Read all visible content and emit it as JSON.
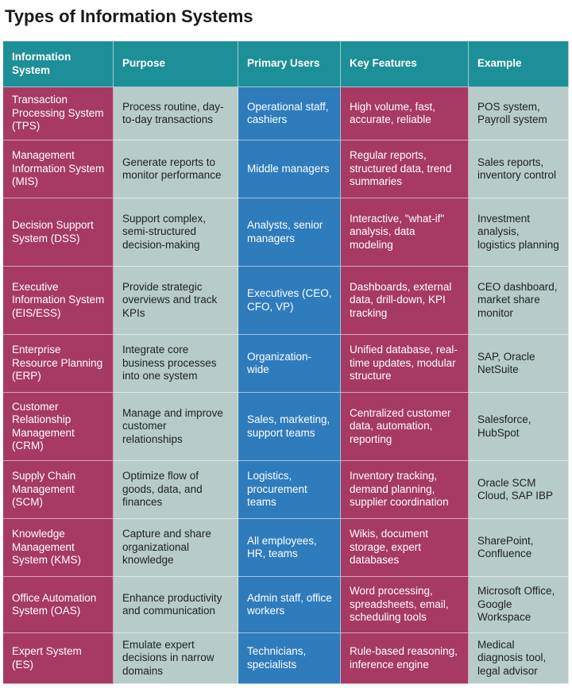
{
  "title": "Types of Information Systems",
  "headers": [
    "Information System",
    "Purpose",
    "Primary Users",
    "Key Features",
    "Example"
  ],
  "rows": [
    [
      "Transaction Processing System (TPS)",
      "Process routine, day-to-day transactions",
      "Operational staff, cashiers",
      "High volume, fast, accurate, reliable",
      "POS system, Payroll system"
    ],
    [
      "Management Information System (MIS)",
      "Generate reports to monitor performance",
      "Middle managers",
      "Regular reports, structured data, trend summaries",
      "Sales reports, inventory control"
    ],
    [
      "Decision Support System (DSS)",
      "Support complex, semi-structured decision-making",
      "Analysts, senior managers",
      "Interactive, \"what-if\" analysis, data modeling",
      "Investment analysis, logistics planning"
    ],
    [
      "Executive Information System (EIS/ESS)",
      "Provide strategic overviews and track KPIs",
      "Executives (CEO, CFO, VP)",
      "Dashboards, external data, drill-down, KPI tracking",
      "CEO dashboard, market share monitor"
    ],
    [
      "Enterprise Resource Planning (ERP)",
      "Integrate core business processes into one system",
      "Organization-wide",
      "Unified database, real-time updates, modular structure",
      "SAP, Oracle NetSuite"
    ],
    [
      "Customer Relationship Management (CRM)",
      "Manage and improve customer relationships",
      "Sales, marketing, support teams",
      "Centralized customer data, automation, reporting",
      "Salesforce, HubSpot"
    ],
    [
      "Supply Chain Management (SCM)",
      "Optimize flow of goods, data, and finances",
      "Logistics, procurement teams",
      "Inventory tracking, demand planning, supplier coordination",
      "Oracle SCM Cloud, SAP IBP"
    ],
    [
      "Knowledge Management System (KMS)",
      "Capture and share organizational knowledge",
      "All employees, HR, teams",
      "Wikis, document storage, expert databases",
      "SharePoint, Confluence"
    ],
    [
      "Office Automation System (OAS)",
      "Enhance productivity and communication",
      "Admin staff, office workers",
      "Word processing, spreadsheets, email, scheduling tools",
      "Microsoft Office, Google Workspace"
    ],
    [
      "Expert System (ES)",
      "Emulate expert decisions in narrow domains",
      "Technicians, specialists",
      "Rule-based reasoning, inference engine",
      "Medical diagnosis tool, legal advisor"
    ]
  ]
}
